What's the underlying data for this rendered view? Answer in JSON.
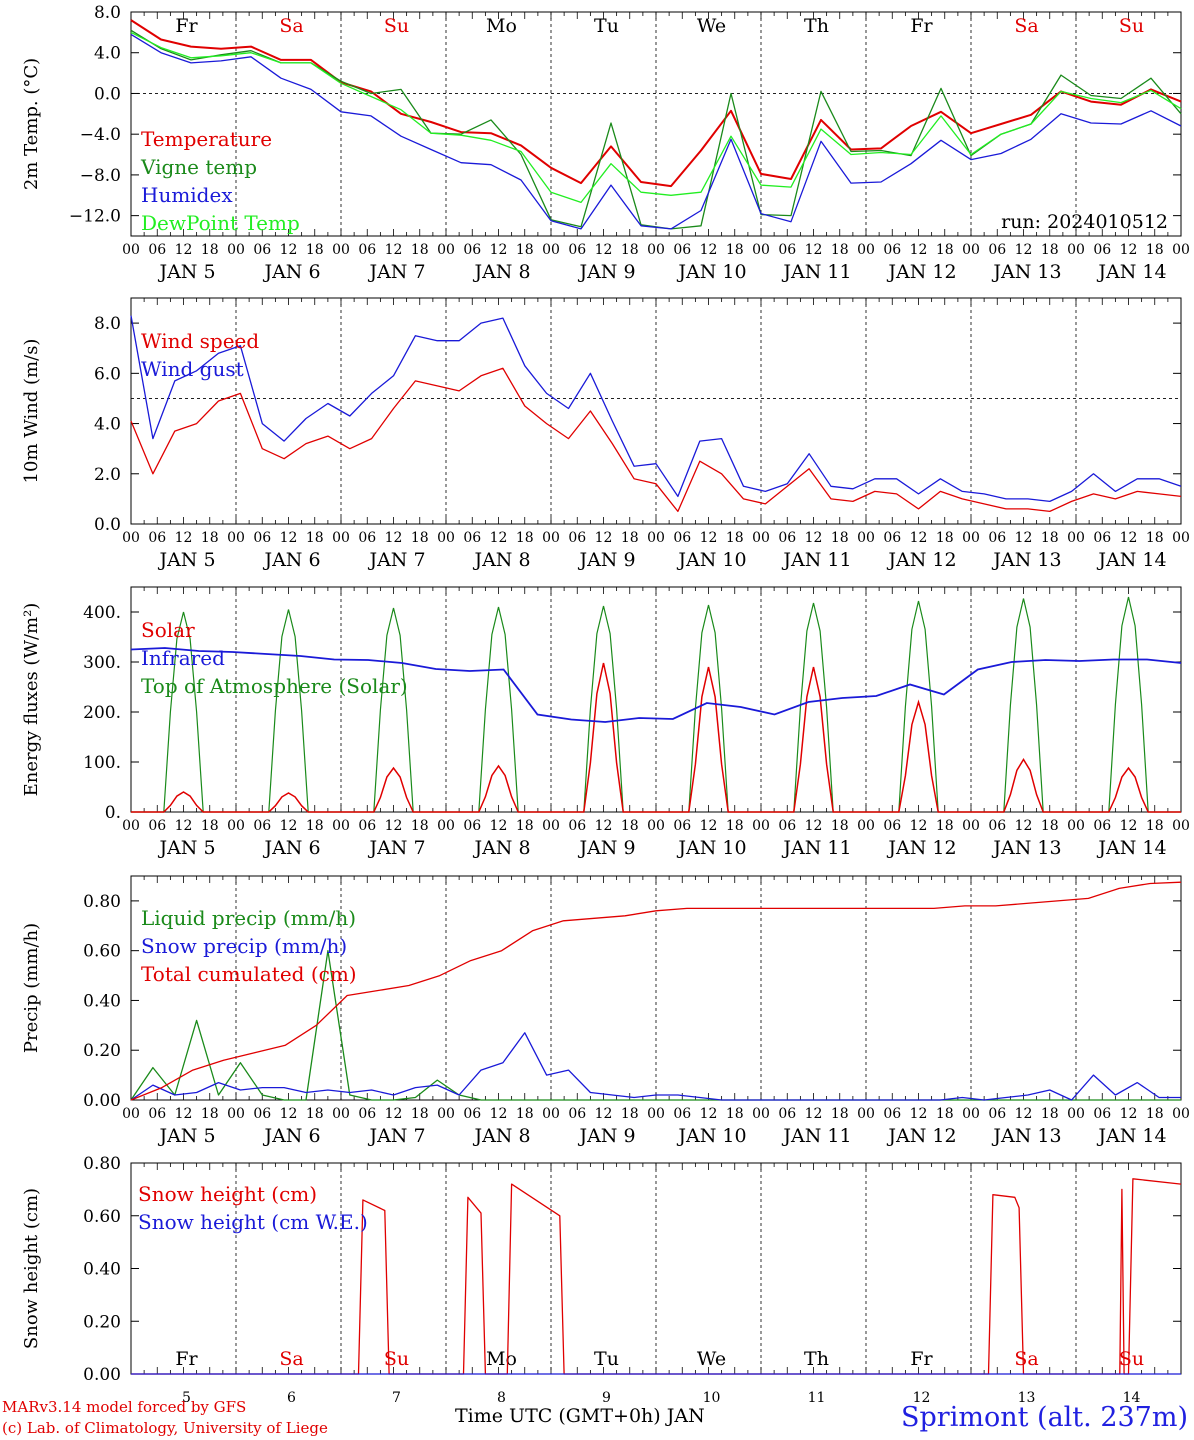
{
  "colors": {
    "red": "#e00000",
    "green": "#1a8a1a",
    "blue": "#1a1ad8",
    "lightgreen": "#22ee22",
    "black": "#000000"
  },
  "day_names": [
    "Fr",
    "Sa",
    "Su",
    "Mo",
    "Tu",
    "We",
    "Th",
    "Fr",
    "Sa",
    "Su"
  ],
  "weekend_days": [
    1,
    2,
    8,
    9
  ],
  "date_labels": [
    "JAN 5",
    "JAN 6",
    "JAN 7",
    "JAN 8",
    "JAN 9",
    "JAN 10",
    "JAN 11",
    "JAN 12",
    "JAN 13",
    "JAN 14"
  ],
  "hour_ticks": [
    "00",
    "06",
    "12",
    "18"
  ],
  "bottom_day_numbers": [
    "5",
    "6",
    "7",
    "8",
    "9",
    "10",
    "11",
    "12",
    "13",
    "14"
  ],
  "footer": {
    "credit1": "MARv3.14 model forced by GFS",
    "credit2": "(c) Lab. of Climatology, University of Liege",
    "xaxis": "Time UTC (GMT+0h) JAN",
    "station": "Sprimont (alt. 237m)"
  },
  "chart_data": [
    {
      "type": "line",
      "ylabel": "2m Temp. (°C)",
      "ylim": [
        -14,
        8
      ],
      "yticks": [
        -12,
        -8,
        -4,
        0,
        4,
        8
      ],
      "ytick_labels": [
        "−12.0",
        "−8.0",
        "−4.0",
        "0.0",
        "4.0",
        "8.0"
      ],
      "ref_line": 0,
      "annotation": "run: 2024010512",
      "x_hours": [
        0,
        6,
        12,
        18,
        24,
        30,
        36,
        42,
        48,
        54,
        60,
        66,
        72,
        78,
        84,
        90,
        96,
        102,
        108,
        114,
        120,
        126,
        132,
        138,
        144,
        150,
        156,
        162,
        168,
        174,
        180,
        186,
        192,
        198,
        204,
        210,
        216,
        222,
        228,
        234,
        240
      ],
      "series": [
        {
          "name": "Temperature",
          "color": "red",
          "values": [
            7.2,
            5.3,
            4.6,
            4.4,
            4.6,
            3.3,
            3.3,
            1.1,
            0.2,
            -2.0,
            -2.8,
            -3.8,
            -3.9,
            -5.1,
            -7.3,
            -8.8,
            -5.2,
            -8.7,
            -9.1,
            -5.6,
            -1.7,
            -7.9,
            -8.4,
            -2.6,
            -5.5,
            -5.4,
            -3.2,
            -1.8,
            -3.9,
            -3.0,
            -2.1,
            0.2,
            -0.8,
            -1.1,
            0.4,
            -0.8
          ]
        },
        {
          "name": "Vigne temp",
          "color": "green",
          "values": [
            6.2,
            4.4,
            3.3,
            3.8,
            4.2,
            3.0,
            3.0,
            1.2,
            0.0,
            0.4,
            -3.9,
            -4.0,
            -2.6,
            -6.0,
            -12.4,
            -13.1,
            -2.9,
            -12.9,
            -13.3,
            -13.0,
            0.0,
            -11.9,
            -12.0,
            0.2,
            -5.7,
            -5.6,
            -6.1,
            0.5,
            -6.1,
            -4.0,
            -3.0,
            1.8,
            -0.2,
            -0.5,
            1.5,
            -2.0
          ]
        },
        {
          "name": "Humidex",
          "color": "blue",
          "values": [
            5.8,
            4.0,
            3.0,
            3.2,
            3.6,
            1.5,
            0.4,
            -1.8,
            -2.2,
            -4.2,
            -5.5,
            -6.8,
            -7.0,
            -8.5,
            -12.5,
            -13.3,
            -9.0,
            -13.0,
            -13.3,
            -11.5,
            -4.5,
            -11.8,
            -12.6,
            -4.7,
            -8.8,
            -8.7,
            -6.9,
            -4.6,
            -6.5,
            -5.9,
            -4.5,
            -2.0,
            -2.9,
            -3.0,
            -1.7,
            -3.2
          ]
        },
        {
          "name": "DewPoint Temp",
          "color": "lightgreen",
          "values": [
            6.0,
            4.5,
            3.5,
            3.7,
            4.0,
            3.0,
            3.0,
            1.0,
            -0.3,
            -1.6,
            -3.9,
            -4.1,
            -4.6,
            -5.7,
            -9.7,
            -10.7,
            -6.9,
            -9.7,
            -10.0,
            -9.7,
            -4.2,
            -9.0,
            -9.2,
            -3.5,
            -6.0,
            -5.8,
            -6.0,
            -2.2,
            -6.0,
            -4.0,
            -3.0,
            0.2,
            -0.5,
            -0.9,
            0.3,
            -1.5
          ]
        }
      ]
    },
    {
      "type": "line",
      "ylabel": "10m Wind (m/s)",
      "ylim": [
        0,
        9
      ],
      "yticks": [
        0,
        2,
        4,
        6,
        8
      ],
      "ytick_labels": [
        "0.0",
        "2.0",
        "4.0",
        "6.0",
        "8.0"
      ],
      "ref_line": 5,
      "series": [
        {
          "name": "Wind speed",
          "color": "red",
          "values": [
            4.1,
            2.0,
            3.7,
            4.0,
            4.9,
            5.2,
            3.0,
            2.6,
            3.2,
            3.5,
            3.0,
            3.4,
            4.6,
            5.7,
            5.5,
            5.3,
            5.9,
            6.2,
            4.7,
            4.0,
            3.4,
            4.5,
            3.2,
            1.8,
            1.6,
            0.5,
            2.5,
            2.0,
            1.0,
            0.8,
            1.5,
            2.2,
            1.0,
            0.9,
            1.3,
            1.2,
            0.6,
            1.3,
            1.0,
            0.8,
            0.6,
            0.6,
            0.5,
            0.9,
            1.2,
            1.0,
            1.3,
            1.2,
            1.1
          ]
        },
        {
          "name": "Wind gust",
          "color": "blue",
          "values": [
            8.3,
            3.4,
            5.7,
            6.1,
            6.8,
            7.1,
            4.0,
            3.3,
            4.2,
            4.8,
            4.3,
            5.2,
            5.9,
            7.5,
            7.3,
            7.3,
            8.0,
            8.2,
            6.3,
            5.2,
            4.6,
            6.0,
            4.1,
            2.3,
            2.4,
            1.1,
            3.3,
            3.4,
            1.5,
            1.3,
            1.6,
            2.8,
            1.5,
            1.4,
            1.8,
            1.8,
            1.2,
            1.8,
            1.3,
            1.2,
            1.0,
            1.0,
            0.9,
            1.3,
            2.0,
            1.3,
            1.8,
            1.8,
            1.5
          ]
        }
      ]
    },
    {
      "type": "line",
      "ylabel": "Energy fluxes (W/m²)",
      "ylim": [
        0,
        450
      ],
      "yticks": [
        0,
        100,
        200,
        300,
        400
      ],
      "ytick_labels": [
        "0.",
        "100.",
        "200.",
        "300.",
        "400."
      ],
      "solar_peaks": [
        40,
        38,
        88,
        92,
        298,
        290,
        290,
        220,
        105,
        88
      ],
      "toa_peaks": [
        400,
        405,
        408,
        410,
        412,
        414,
        418,
        422,
        427,
        430
      ],
      "series": [
        {
          "name": "Solar",
          "color": "red"
        },
        {
          "name": "Infrared",
          "color": "blue",
          "values": [
            325,
            328,
            322,
            320,
            316,
            312,
            305,
            304,
            298,
            286,
            282,
            285,
            195,
            185,
            180,
            188,
            186,
            218,
            210,
            195,
            220,
            228,
            232,
            255,
            235,
            285,
            300,
            304,
            302,
            305,
            305,
            298
          ]
        },
        {
          "name": "Top of Atmosphere (Solar)",
          "color": "green"
        }
      ]
    },
    {
      "type": "line",
      "ylabel": "Precip (mm/h)",
      "ylim": [
        0,
        0.9
      ],
      "yticks": [
        0,
        0.2,
        0.4,
        0.6,
        0.8
      ],
      "ytick_labels": [
        "0.00",
        "0.20",
        "0.40",
        "0.60",
        "0.80"
      ],
      "series": [
        {
          "name": "Liquid precip (mm/h)",
          "color": "green",
          "values": [
            0,
            0.13,
            0.02,
            0.32,
            0.02,
            0.15,
            0.02,
            0,
            0,
            0.6,
            0.02,
            0,
            0,
            0.01,
            0.08,
            0.02,
            0,
            0,
            0,
            0,
            0,
            0,
            0,
            0,
            0,
            0,
            0,
            0,
            0,
            0,
            0,
            0,
            0,
            0,
            0,
            0,
            0,
            0,
            0,
            0,
            0,
            0,
            0,
            0,
            0,
            0,
            0,
            0,
            0
          ]
        },
        {
          "name": "Snow precip (mm/h)",
          "color": "blue",
          "values": [
            0,
            0.06,
            0.02,
            0.03,
            0.07,
            0.04,
            0.05,
            0.05,
            0.03,
            0.04,
            0.03,
            0.04,
            0.02,
            0.05,
            0.06,
            0.02,
            0.12,
            0.15,
            0.27,
            0.1,
            0.12,
            0.03,
            0.02,
            0.01,
            0.02,
            0.02,
            0.01,
            0,
            0,
            0,
            0,
            0,
            0,
            0,
            0,
            0,
            0,
            0,
            0.01,
            0,
            0.01,
            0.02,
            0.04,
            0,
            0.1,
            0.02,
            0.07,
            0.01,
            0.01
          ]
        },
        {
          "name": "Total cumulated (cm)",
          "color": "red",
          "values": [
            0,
            0.05,
            0.12,
            0.16,
            0.19,
            0.22,
            0.3,
            0.42,
            0.44,
            0.46,
            0.5,
            0.56,
            0.6,
            0.68,
            0.72,
            0.73,
            0.74,
            0.76,
            0.77,
            0.77,
            0.77,
            0.77,
            0.77,
            0.77,
            0.77,
            0.77,
            0.77,
            0.78,
            0.78,
            0.79,
            0.8,
            0.81,
            0.85,
            0.87,
            0.875
          ]
        }
      ]
    },
    {
      "type": "line",
      "ylabel": "Snow height (cm)",
      "ylim": [
        0,
        0.8
      ],
      "yticks": [
        0,
        0.2,
        0.4,
        0.6,
        0.8
      ],
      "ytick_labels": [
        "0.00",
        "0.20",
        "0.40",
        "0.60",
        "0.80"
      ],
      "series": [
        {
          "name": "Snow height (cm)",
          "color": "red",
          "points": [
            [
              0,
              0
            ],
            [
              52,
              0
            ],
            [
              53,
              0.66
            ],
            [
              58,
              0.62
            ],
            [
              59,
              0
            ],
            [
              76,
              0
            ],
            [
              77,
              0.67
            ],
            [
              80,
              0.61
            ],
            [
              81,
              0
            ],
            [
              86,
              0
            ],
            [
              87,
              0.72
            ],
            [
              98,
              0.6
            ],
            [
              99,
              0
            ],
            [
              196,
              0
            ],
            [
              197,
              0.68
            ],
            [
              202,
              0.67
            ],
            [
              203,
              0.63
            ],
            [
              204,
              0
            ],
            [
              226,
              0
            ],
            [
              226.5,
              0.7
            ],
            [
              227,
              0
            ],
            [
              228,
              0
            ],
            [
              229,
              0.74
            ],
            [
              240,
              0.72
            ]
          ]
        },
        {
          "name": "Snow height (cm W.E.)",
          "color": "blue",
          "points": [
            [
              0,
              0
            ],
            [
              240,
              0
            ]
          ]
        }
      ]
    }
  ]
}
